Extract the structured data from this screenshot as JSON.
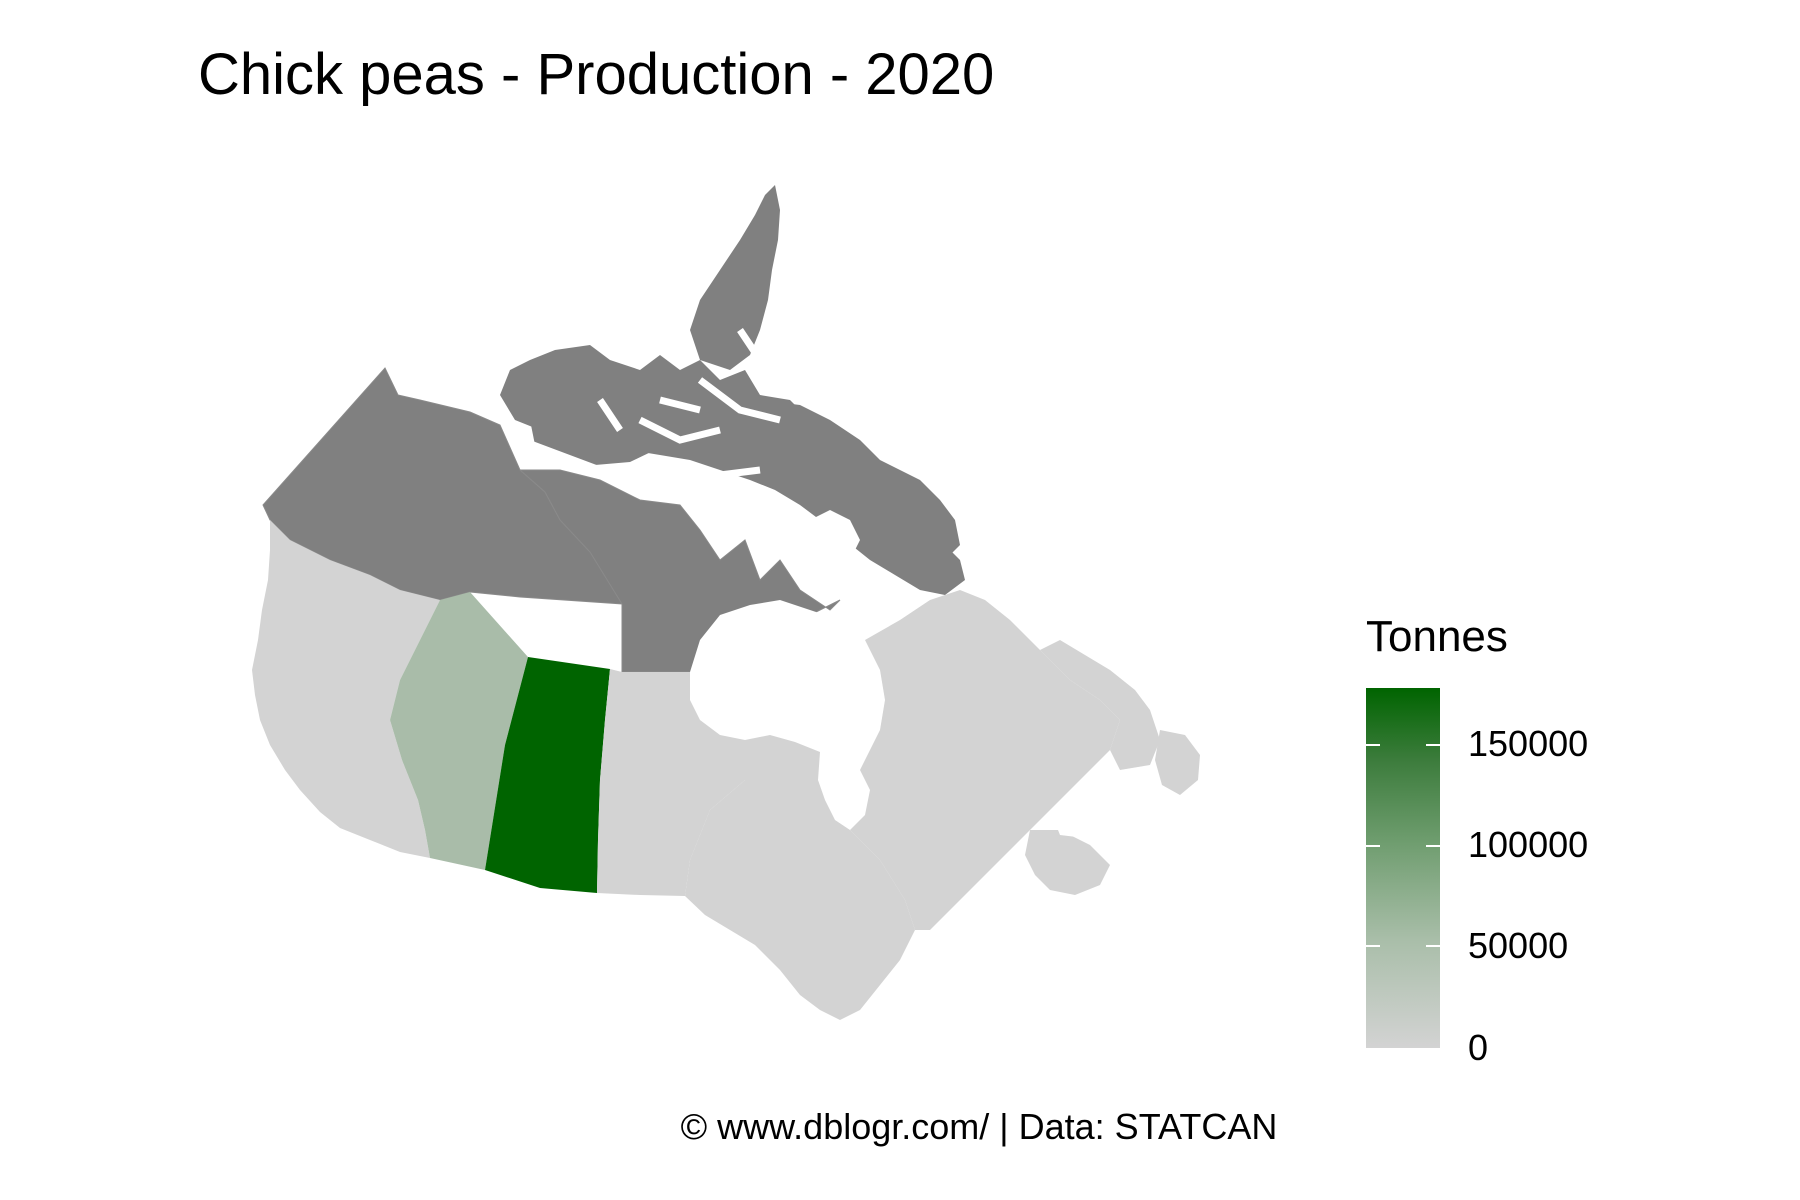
{
  "title": "Chick peas - Production - 2020",
  "legend": {
    "title": "Tonnes",
    "labels": [
      {
        "label": "150000",
        "value": 150000
      },
      {
        "label": "100000",
        "value": 100000
      },
      {
        "label": "50000",
        "value": 50000
      },
      {
        "label": "0",
        "value": 0
      }
    ],
    "low_color": "#d3d3d3",
    "high_color": "#006400",
    "no_data_color": "#808080"
  },
  "regions": [
    {
      "name": "Saskatchewan",
      "status": "high production",
      "color": "#006400"
    },
    {
      "name": "Alberta",
      "status": "low production",
      "color": "#a9bca9"
    },
    {
      "name": "British Columbia",
      "status": "zero",
      "color": "#d3d3d3"
    },
    {
      "name": "Manitoba",
      "status": "zero",
      "color": "#d3d3d3"
    },
    {
      "name": "Ontario",
      "status": "zero",
      "color": "#d3d3d3"
    },
    {
      "name": "Quebec",
      "status": "zero",
      "color": "#d3d3d3"
    },
    {
      "name": "Atlantic provinces",
      "status": "zero",
      "color": "#d3d3d3"
    },
    {
      "name": "Yukon",
      "status": "no data",
      "color": "#808080"
    },
    {
      "name": "Northwest Territories",
      "status": "no data",
      "color": "#808080"
    },
    {
      "name": "Nunavut",
      "status": "no data",
      "color": "#808080"
    }
  ],
  "caption": "© www.dblogr.com/  |  Data: STATCAN"
}
